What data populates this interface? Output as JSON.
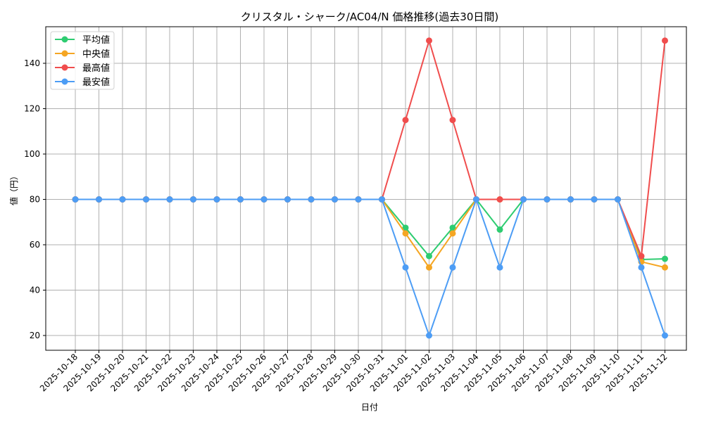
{
  "chart_data": {
    "type": "line",
    "title": "クリスタル・シャーク/AC04/N 価格推移(過去30日間)",
    "xlabel": "日付",
    "ylabel": "値（円）",
    "ylim": [
      14,
      156
    ],
    "yticks": [
      20,
      40,
      60,
      80,
      100,
      120,
      140
    ],
    "grid": true,
    "legend_position": "upper left",
    "categories": [
      "2025-10-18",
      "2025-10-19",
      "2025-10-20",
      "2025-10-21",
      "2025-10-22",
      "2025-10-23",
      "2025-10-24",
      "2025-10-25",
      "2025-10-26",
      "2025-10-27",
      "2025-10-28",
      "2025-10-29",
      "2025-10-30",
      "2025-10-31",
      "2025-11-01",
      "2025-11-02",
      "2025-11-03",
      "2025-11-04",
      "2025-11-05",
      "2025-11-06",
      "2025-11-07",
      "2025-11-08",
      "2025-11-09",
      "2025-11-10",
      "2025-11-11",
      "2025-11-12"
    ],
    "series": [
      {
        "name": "平均値",
        "color": "#2ecc71",
        "values": [
          80,
          80,
          80,
          80,
          80,
          80,
          80,
          80,
          80,
          80,
          80,
          80,
          80,
          80,
          67.5,
          55,
          67.5,
          80,
          66.7,
          80,
          80,
          80,
          80,
          80,
          53.5,
          53.8
        ]
      },
      {
        "name": "中央値",
        "color": "#f5a623",
        "values": [
          80,
          80,
          80,
          80,
          80,
          80,
          80,
          80,
          80,
          80,
          80,
          80,
          80,
          80,
          65,
          50,
          65,
          80,
          80,
          80,
          80,
          80,
          80,
          80,
          52.5,
          50
        ]
      },
      {
        "name": "最高値",
        "color": "#f04d4d",
        "values": [
          80,
          80,
          80,
          80,
          80,
          80,
          80,
          80,
          80,
          80,
          80,
          80,
          80,
          80,
          115,
          150,
          115,
          80,
          80,
          80,
          80,
          80,
          80,
          80,
          55,
          150
        ]
      },
      {
        "name": "最安値",
        "color": "#4d9df5",
        "values": [
          80,
          80,
          80,
          80,
          80,
          80,
          80,
          80,
          80,
          80,
          80,
          80,
          80,
          80,
          50,
          20,
          50,
          80,
          50,
          80,
          80,
          80,
          80,
          80,
          50,
          20
        ]
      }
    ]
  }
}
